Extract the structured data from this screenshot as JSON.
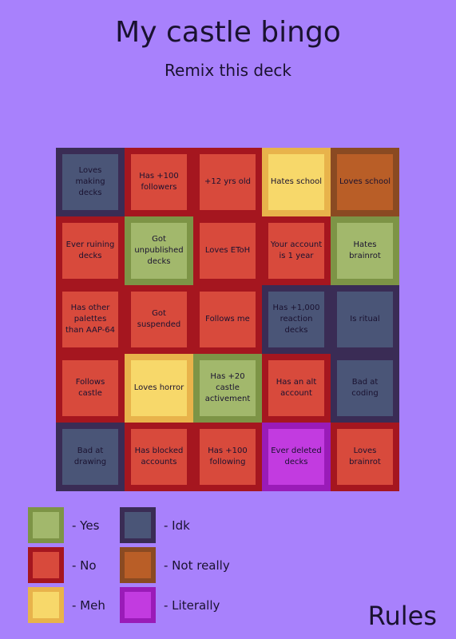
{
  "header": {
    "title": "My castle bingo",
    "subtitle": "Remix this deck"
  },
  "cells": [
    {
      "text": "Loves making decks",
      "fill": "#4a5577",
      "border": "#3a2c55"
    },
    {
      "text": "Has +100 followers",
      "fill": "#d84a3c",
      "border": "#a5161f"
    },
    {
      "text": "+12 yrs old",
      "fill": "#d84a3c",
      "border": "#a5161f"
    },
    {
      "text": "Hates school",
      "fill": "#f7d86a",
      "border": "#e8b34b"
    },
    {
      "text": "Loves school",
      "fill": "#b95e27",
      "border": "#8a4a22"
    },
    {
      "text": "Ever ruining decks",
      "fill": "#d84a3c",
      "border": "#a5161f"
    },
    {
      "text": "Got unpublished decks",
      "fill": "#a2b86c",
      "border": "#7d9446"
    },
    {
      "text": "Loves EToH",
      "fill": "#d84a3c",
      "border": "#a5161f"
    },
    {
      "text": "Your account is 1 year",
      "fill": "#d84a3c",
      "border": "#a5161f"
    },
    {
      "text": "Hates brainrot",
      "fill": "#a2b86c",
      "border": "#7d9446"
    },
    {
      "text": "Has other palettes than AAP-64",
      "fill": "#d84a3c",
      "border": "#a5161f"
    },
    {
      "text": "Got suspended",
      "fill": "#d84a3c",
      "border": "#a5161f"
    },
    {
      "text": "Follows me",
      "fill": "#d84a3c",
      "border": "#a5161f"
    },
    {
      "text": "Has +1,000 reaction decks",
      "fill": "#4a5577",
      "border": "#3a2c55"
    },
    {
      "text": "Is ritual",
      "fill": "#4a5577",
      "border": "#3a2c55"
    },
    {
      "text": "Follows castle",
      "fill": "#d84a3c",
      "border": "#a5161f"
    },
    {
      "text": "Loves horror",
      "fill": "#f7d86a",
      "border": "#e8b34b"
    },
    {
      "text": "Has +20 castle activement",
      "fill": "#a2b86c",
      "border": "#7d9446"
    },
    {
      "text": "Has an alt account",
      "fill": "#d84a3c",
      "border": "#a5161f"
    },
    {
      "text": "Bad at coding",
      "fill": "#4a5577",
      "border": "#3a2c55"
    },
    {
      "text": "Bad at drawing",
      "fill": "#4a5577",
      "border": "#3a2c55"
    },
    {
      "text": "Has blocked accounts",
      "fill": "#d84a3c",
      "border": "#a5161f"
    },
    {
      "text": "Has +100 following",
      "fill": "#d84a3c",
      "border": "#a5161f"
    },
    {
      "text": "Ever deleted decks",
      "fill": "#c23be0",
      "border": "#9a1bb8"
    },
    {
      "text": "Loves brainrot",
      "fill": "#d84a3c",
      "border": "#a5161f"
    }
  ],
  "legend": [
    {
      "label": "- Yes",
      "fill": "#a2b86c",
      "border": "#7d9446"
    },
    {
      "label": "- Idk",
      "fill": "#4a5577",
      "border": "#3a2c55"
    },
    {
      "label": "- No",
      "fill": "#d84a3c",
      "border": "#a5161f"
    },
    {
      "label": "- Not really",
      "fill": "#b95e27",
      "border": "#8a4a22"
    },
    {
      "label": "- Meh",
      "fill": "#f7d86a",
      "border": "#e8b34b"
    },
    {
      "label": "- Literally",
      "fill": "#c23be0",
      "border": "#9a1bb8"
    }
  ],
  "rules": "Rules"
}
